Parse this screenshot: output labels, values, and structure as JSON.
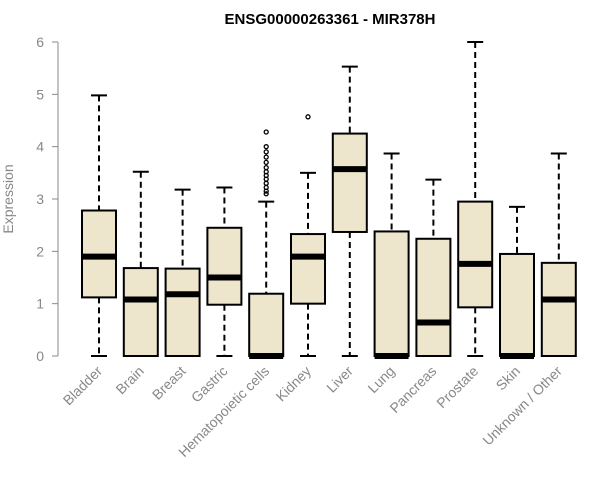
{
  "chart_data": {
    "type": "boxplot",
    "title": "ENSG00000263361 - MIR378H",
    "xlabel": "",
    "ylabel": "Expression",
    "ylim": [
      0,
      6
    ],
    "yticks": [
      0,
      1,
      2,
      3,
      4,
      5,
      6
    ],
    "colors": {
      "box_fill": "#ede6cc",
      "stroke": "#000000",
      "axis": "#888888"
    },
    "categories": [
      "Bladder",
      "Brain",
      "Breast",
      "Gastric",
      "Hematopoietic cells",
      "Kidney",
      "Liver",
      "Lung",
      "Pancreas",
      "Prostate",
      "Skin",
      "Unknown / Other"
    ],
    "boxes": [
      {
        "category": "Bladder",
        "min": 0,
        "q1": 1.12,
        "median": 1.9,
        "q3": 2.78,
        "max": 4.98,
        "outliers": []
      },
      {
        "category": "Brain",
        "min": 0,
        "q1": 0,
        "median": 1.08,
        "q3": 1.68,
        "max": 3.52,
        "outliers": []
      },
      {
        "category": "Breast",
        "min": 0,
        "q1": 0,
        "median": 1.18,
        "q3": 1.67,
        "max": 3.18,
        "outliers": []
      },
      {
        "category": "Gastric",
        "min": 0,
        "q1": 0.98,
        "median": 1.5,
        "q3": 2.45,
        "max": 3.22,
        "outliers": []
      },
      {
        "category": "Hematopoietic cells",
        "min": 0,
        "q1": 0,
        "median": 0,
        "q3": 1.19,
        "max": 2.95,
        "outliers": [
          3.1,
          3.15,
          3.22,
          3.3,
          3.38,
          3.45,
          3.52,
          3.6,
          3.7,
          3.8,
          3.9,
          4.0,
          4.28
        ]
      },
      {
        "category": "Kidney",
        "min": 0,
        "q1": 1.0,
        "median": 1.9,
        "q3": 2.33,
        "max": 3.5,
        "outliers": [
          4.57
        ]
      },
      {
        "category": "Liver",
        "min": 0,
        "q1": 2.37,
        "median": 3.57,
        "q3": 4.25,
        "max": 5.53,
        "outliers": []
      },
      {
        "category": "Lung",
        "min": 0,
        "q1": 0,
        "median": 0,
        "q3": 2.38,
        "max": 3.87,
        "outliers": []
      },
      {
        "category": "Pancreas",
        "min": 0,
        "q1": 0,
        "median": 0.64,
        "q3": 2.24,
        "max": 3.37,
        "outliers": []
      },
      {
        "category": "Prostate",
        "min": 0,
        "q1": 0.93,
        "median": 1.76,
        "q3": 2.95,
        "max": 6.0,
        "outliers": []
      },
      {
        "category": "Skin",
        "min": 0,
        "q1": 0,
        "median": 0,
        "q3": 1.95,
        "max": 2.85,
        "outliers": []
      },
      {
        "category": "Unknown / Other",
        "min": 0,
        "q1": 0,
        "median": 1.08,
        "q3": 1.78,
        "max": 3.87,
        "outliers": []
      }
    ]
  }
}
